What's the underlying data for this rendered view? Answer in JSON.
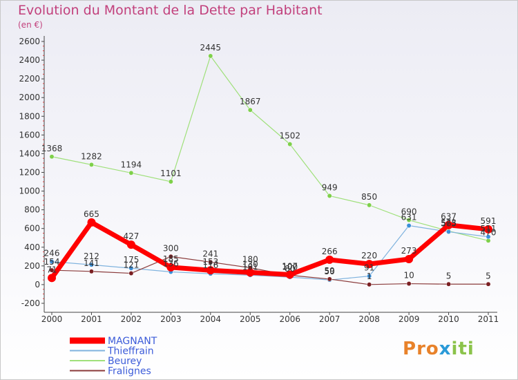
{
  "chart_data": {
    "type": "line",
    "title": "Evolution du Montant de la Dette par Habitant",
    "subtitle": "(en €)",
    "categories": [
      "2000",
      "2001",
      "2002",
      "2003",
      "2004",
      "2005",
      "2006",
      "2007",
      "2008",
      "2009",
      "2010",
      "2011"
    ],
    "yticks": [
      -200,
      0,
      200,
      400,
      600,
      800,
      1000,
      1200,
      1400,
      1600,
      1800,
      2000,
      2200,
      2400,
      2600
    ],
    "ylim": [
      -200,
      2600
    ],
    "grid": false,
    "legend": "bottom-left",
    "series": [
      {
        "name": "Beurey",
        "color": "#7ed04a",
        "lineColor": "#9fe07a",
        "width": 1.2,
        "values": [
          1368,
          1282,
          1194,
          1101,
          2445,
          1867,
          1502,
          949,
          850,
          690,
          573,
          470
        ],
        "labels": [
          "1368",
          "1282",
          "1194",
          "1101",
          "2445",
          "1867",
          "1502",
          "949",
          "850",
          "690",
          "573",
          "470"
        ]
      },
      {
        "name": "Thieffrain",
        "color": "#3b8fd8",
        "lineColor": "#7fb3de",
        "width": 1.2,
        "values": [
          246,
          212,
          175,
          136,
          116,
          101,
          80,
          50,
          91,
          631,
          565,
          511
        ],
        "labels": [
          "246",
          "212",
          "175",
          "136",
          "116",
          "101",
          "80",
          "50",
          "91",
          "631",
          "565",
          "511"
        ]
      },
      {
        "name": "Fralignes",
        "color": "#7a1f22",
        "lineColor": "#8a3a3a",
        "width": 1.2,
        "values": [
          154,
          141,
          121,
          300,
          241,
          180,
          100,
          59,
          1,
          10,
          5,
          5
        ],
        "labels": [
          "154",
          "141",
          "121",
          "300",
          "241",
          "180",
          "100",
          "59",
          "1",
          "10",
          "5",
          "5"
        ]
      },
      {
        "name": "MAGNANT",
        "color": "#ff0000",
        "lineColor": "#ff0000",
        "width": 7,
        "values": [
          71,
          665,
          427,
          185,
          153,
          130,
          107,
          266,
          220,
          273,
          637,
          591
        ],
        "labels": [
          "71",
          "665",
          "427",
          "185",
          "153",
          "130",
          "107",
          "266",
          "220",
          "273",
          "637",
          "591"
        ]
      }
    ],
    "legend_order": [
      "MAGNANT",
      "Thieffrain",
      "Beurey",
      "Fralignes"
    ]
  },
  "logo_text": "Proxiti"
}
